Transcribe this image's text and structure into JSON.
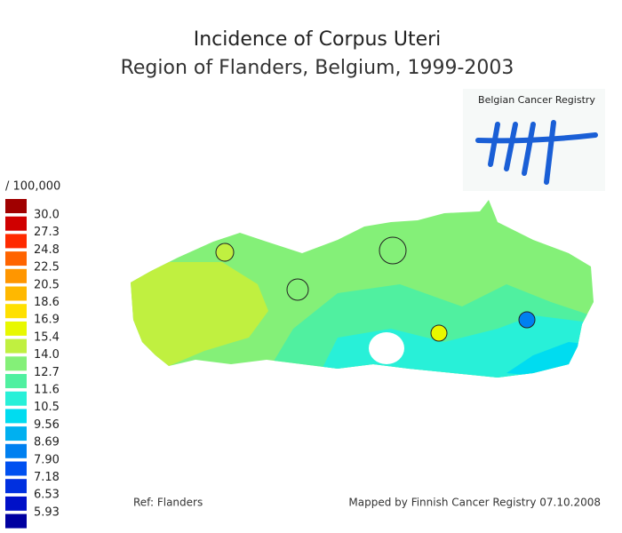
{
  "header": {
    "title": "Incidence of Corpus Uteri",
    "subtitle": "Region of Flanders, Belgium, 1999-2003"
  },
  "logo": {
    "text": "Belgian Cancer Registry"
  },
  "legend": {
    "unit": "/ 100,000",
    "labels": [
      "30.0",
      "27.3",
      "24.8",
      "22.5",
      "20.5",
      "18.6",
      "16.9",
      "15.4",
      "14.0",
      "12.7",
      "11.6",
      "10.5",
      "9.56",
      "8.69",
      "7.90",
      "7.18",
      "6.53",
      "5.93"
    ],
    "colors": [
      "#a00000",
      "#d00000",
      "#ff2a00",
      "#ff6400",
      "#ff9600",
      "#ffb800",
      "#ffe000",
      "#e8f800",
      "#c0f040",
      "#84f078",
      "#50f0a0",
      "#28f0d8",
      "#00dcf0",
      "#00b0f0",
      "#0080f0",
      "#0050f0",
      "#0030e0",
      "#0010c8",
      "#0000a0"
    ]
  },
  "footer": {
    "reference": "Ref: Flanders",
    "credit": "Mapped by Finnish Cancer Registry 07.10.2008"
  }
}
